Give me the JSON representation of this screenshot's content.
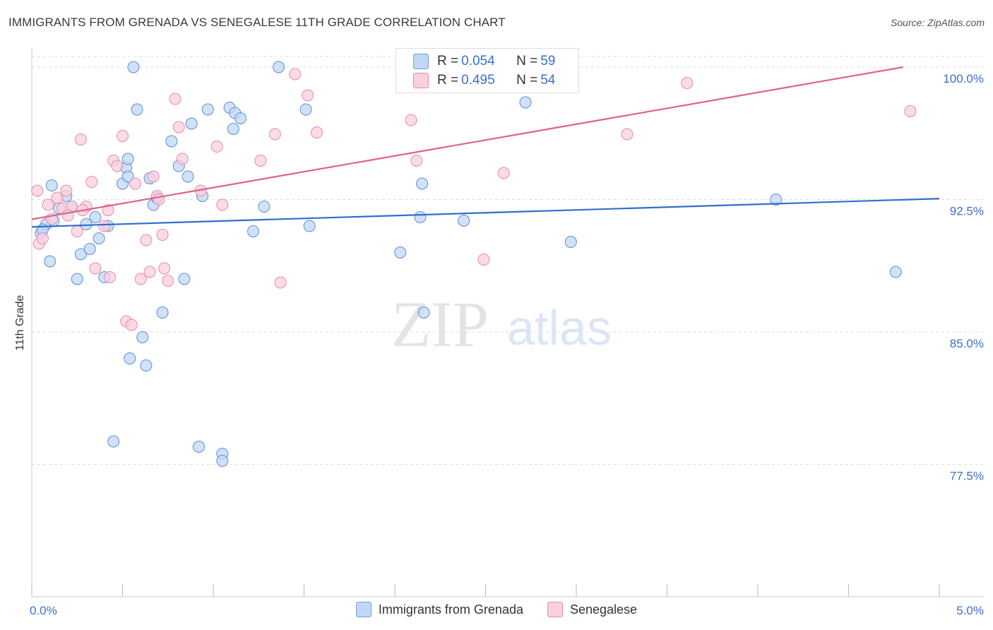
{
  "title": "IMMIGRANTS FROM GRENADA VS SENEGALESE 11TH GRADE CORRELATION CHART",
  "source": "Source: ZipAtlas.com",
  "watermark": {
    "zip": "ZIP",
    "atlas": "atlas"
  },
  "stats": [
    {
      "r_label": "R = ",
      "r": "0.054",
      "n_label": "N = ",
      "n": "59",
      "color": "#a9c6f0",
      "border": "#6f9ee0"
    },
    {
      "r_label": "R = ",
      "r": "0.495",
      "n_label": "N = ",
      "n": "54",
      "color": "#f7bcd0",
      "border": "#e889a8"
    }
  ],
  "legend": [
    {
      "label": "Immigrants from Grenada",
      "color": "#a9c6f0",
      "border": "#6f9ee0"
    },
    {
      "label": "Senegalese",
      "color": "#f7bcd0",
      "border": "#e889a8"
    }
  ],
  "chart_data": {
    "type": "scatter",
    "ylabel": "11th Grade",
    "xlim": [
      0.0,
      5.0
    ],
    "ylim": [
      70.0,
      101.0
    ],
    "x_tick_labels": [
      "0.0%",
      "5.0%"
    ],
    "y_ticks": [
      77.5,
      85.0,
      92.5,
      100.0
    ],
    "y_tick_labels": [
      "77.5%",
      "85.0%",
      "92.5%",
      "100.0%"
    ],
    "series": [
      {
        "name": "Immigrants from Grenada",
        "color": "#5b8fd9",
        "fill": "#c2d7f5",
        "trend": [
          [
            0.0,
            90.95
          ],
          [
            5.0,
            92.55
          ]
        ],
        "trend_color": "#2f6fcc",
        "points": [
          [
            0.05,
            90.6
          ],
          [
            0.08,
            91.1
          ],
          [
            0.1,
            89.0
          ],
          [
            0.11,
            93.3
          ],
          [
            0.15,
            92.0
          ],
          [
            0.19,
            92.7
          ],
          [
            0.22,
            92.1
          ],
          [
            0.25,
            88.0
          ],
          [
            0.27,
            89.4
          ],
          [
            0.3,
            91.1
          ],
          [
            0.32,
            89.7
          ],
          [
            0.35,
            91.5
          ],
          [
            0.37,
            90.3
          ],
          [
            0.4,
            88.1
          ],
          [
            0.42,
            91.0
          ],
          [
            0.45,
            78.8
          ],
          [
            0.5,
            93.4
          ],
          [
            0.52,
            94.3
          ],
          [
            0.53,
            94.8
          ],
          [
            0.53,
            93.8
          ],
          [
            0.54,
            83.5
          ],
          [
            0.56,
            100.0
          ],
          [
            0.58,
            97.6
          ],
          [
            0.61,
            84.7
          ],
          [
            0.63,
            83.1
          ],
          [
            0.65,
            93.7
          ],
          [
            0.67,
            92.2
          ],
          [
            0.69,
            92.6
          ],
          [
            0.72,
            86.1
          ],
          [
            0.77,
            95.8
          ],
          [
            0.81,
            94.4
          ],
          [
            0.84,
            88.0
          ],
          [
            0.86,
            93.8
          ],
          [
            0.88,
            96.8
          ],
          [
            0.92,
            78.5
          ],
          [
            0.94,
            92.7
          ],
          [
            0.97,
            97.6
          ],
          [
            1.05,
            78.1
          ],
          [
            1.05,
            77.7
          ],
          [
            1.09,
            97.7
          ],
          [
            1.11,
            96.5
          ],
          [
            1.12,
            97.4
          ],
          [
            1.15,
            97.1
          ],
          [
            1.22,
            90.7
          ],
          [
            1.28,
            92.1
          ],
          [
            1.36,
            100.0
          ],
          [
            1.51,
            97.6
          ],
          [
            1.53,
            91.0
          ],
          [
            2.03,
            89.5
          ],
          [
            2.14,
            91.5
          ],
          [
            2.15,
            93.4
          ],
          [
            2.16,
            86.1
          ],
          [
            2.38,
            91.3
          ],
          [
            2.72,
            98.0
          ],
          [
            2.97,
            90.1
          ],
          [
            4.1,
            92.5
          ],
          [
            4.76,
            88.4
          ],
          [
            0.06,
            90.8
          ],
          [
            0.12,
            91.3
          ]
        ]
      },
      {
        "name": "Senegalese",
        "color": "#e889a8",
        "fill": "#f9d0de",
        "trend": [
          [
            0.0,
            91.38
          ],
          [
            4.8,
            100.0
          ]
        ],
        "trend_color": "#e0608a",
        "points": [
          [
            0.03,
            93.0
          ],
          [
            0.04,
            90.0
          ],
          [
            0.06,
            90.3
          ],
          [
            0.09,
            92.2
          ],
          [
            0.11,
            91.4
          ],
          [
            0.14,
            92.6
          ],
          [
            0.17,
            92.0
          ],
          [
            0.19,
            93.0
          ],
          [
            0.22,
            92.1
          ],
          [
            0.25,
            90.7
          ],
          [
            0.27,
            95.9
          ],
          [
            0.3,
            92.1
          ],
          [
            0.33,
            93.5
          ],
          [
            0.35,
            88.6
          ],
          [
            0.4,
            91.0
          ],
          [
            0.42,
            91.9
          ],
          [
            0.43,
            88.1
          ],
          [
            0.45,
            94.7
          ],
          [
            0.47,
            94.4
          ],
          [
            0.5,
            96.1
          ],
          [
            0.52,
            85.6
          ],
          [
            0.55,
            85.4
          ],
          [
            0.57,
            93.4
          ],
          [
            0.6,
            88.0
          ],
          [
            0.63,
            90.2
          ],
          [
            0.65,
            88.4
          ],
          [
            0.67,
            93.8
          ],
          [
            0.69,
            92.7
          ],
          [
            0.7,
            92.5
          ],
          [
            0.72,
            90.5
          ],
          [
            0.73,
            88.6
          ],
          [
            0.75,
            87.9
          ],
          [
            0.79,
            98.2
          ],
          [
            0.81,
            96.6
          ],
          [
            0.83,
            94.8
          ],
          [
            0.93,
            93.0
          ],
          [
            1.02,
            95.5
          ],
          [
            1.05,
            92.2
          ],
          [
            1.26,
            94.7
          ],
          [
            1.34,
            96.2
          ],
          [
            1.37,
            87.8
          ],
          [
            1.45,
            99.6
          ],
          [
            1.52,
            98.4
          ],
          [
            1.57,
            96.3
          ],
          [
            2.09,
            97.0
          ],
          [
            2.12,
            94.7
          ],
          [
            2.49,
            89.1
          ],
          [
            2.6,
            94.0
          ],
          [
            2.73,
            100.0
          ],
          [
            3.28,
            96.2
          ],
          [
            3.61,
            99.1
          ],
          [
            4.84,
            97.5
          ],
          [
            0.2,
            91.6
          ],
          [
            0.28,
            91.9
          ]
        ]
      }
    ]
  }
}
